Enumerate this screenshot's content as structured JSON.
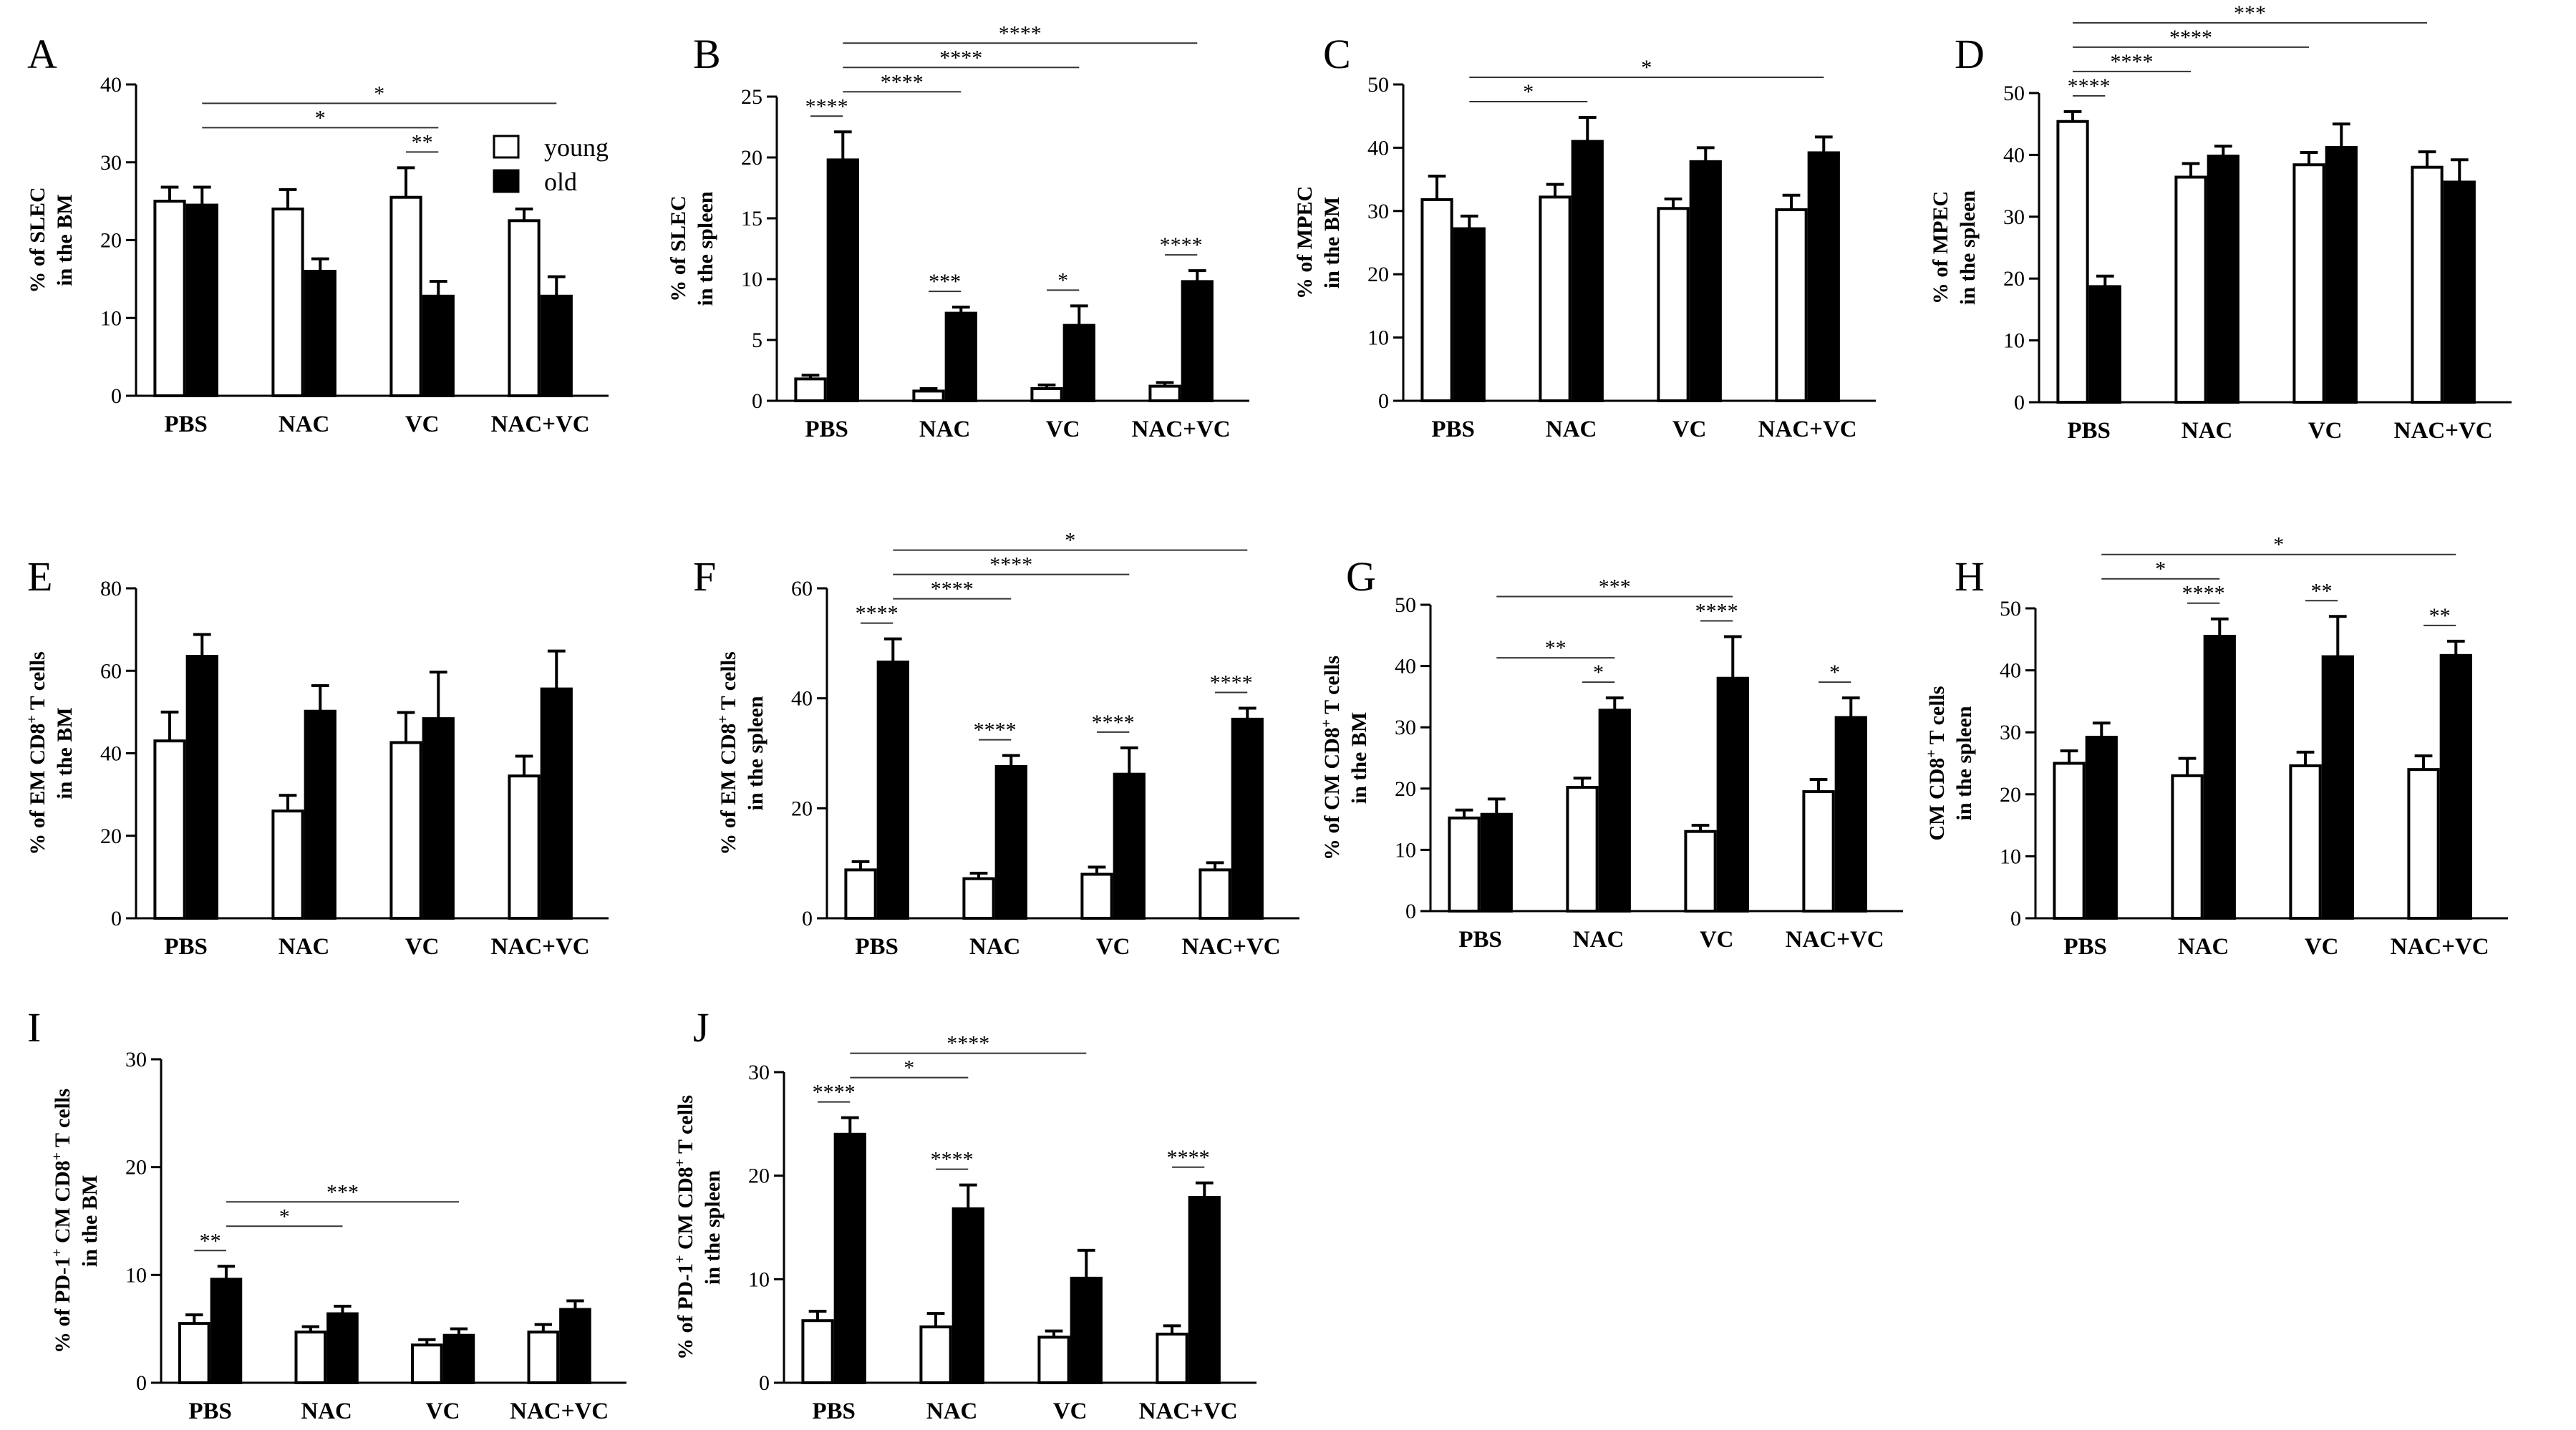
{
  "legend": {
    "young": "young",
    "old": "old"
  },
  "colors": {
    "young_fill": "#ffffff",
    "old_fill": "#000000",
    "sig_line": "#333333"
  },
  "chart_data": [
    {
      "panel": "A",
      "type": "bar",
      "categories": [
        "PBS",
        "NAC",
        "VC",
        "NAC+VC"
      ],
      "ylabel_lines": [
        [
          "% of SLEC"
        ],
        [
          "in the BM"
        ]
      ],
      "ylim": [
        0,
        40
      ],
      "yticks": [
        0,
        10,
        20,
        30,
        40
      ],
      "series": [
        {
          "name": "young",
          "values": [
            25,
            24,
            25.5,
            22.5
          ],
          "errors": [
            1.8,
            2.5,
            3.8,
            1.5
          ]
        },
        {
          "name": "old",
          "values": [
            24.5,
            16,
            12.8,
            12.8
          ],
          "errors": [
            2.3,
            1.6,
            1.9,
            2.5
          ]
        }
      ],
      "significance": [
        {
          "from": [
            2,
            0
          ],
          "to": [
            2,
            1
          ],
          "label": "**"
        },
        {
          "from": [
            0,
            1
          ],
          "to": [
            2,
            1
          ],
          "label": "*"
        },
        {
          "from": [
            0,
            1
          ],
          "to": [
            3,
            1
          ],
          "label": "*"
        }
      ]
    },
    {
      "panel": "B",
      "type": "bar",
      "categories": [
        "PBS",
        "NAC",
        "VC",
        "NAC+VC"
      ],
      "ylabel_lines": [
        [
          "% of SLEC"
        ],
        [
          "in the spleen"
        ]
      ],
      "ylim": [
        0,
        25
      ],
      "yticks": [
        0,
        5,
        10,
        15,
        20,
        25
      ],
      "series": [
        {
          "name": "young",
          "values": [
            1.8,
            0.8,
            1,
            1.2
          ],
          "errors": [
            0.3,
            0.2,
            0.3,
            0.3
          ]
        },
        {
          "name": "old",
          "values": [
            19.8,
            7.2,
            6.2,
            9.8
          ],
          "errors": [
            2.3,
            0.5,
            1.6,
            0.9
          ]
        }
      ],
      "significance": [
        {
          "from": [
            0,
            0
          ],
          "to": [
            0,
            1
          ],
          "label": "****"
        },
        {
          "from": [
            1,
            0
          ],
          "to": [
            1,
            1
          ],
          "label": "***"
        },
        {
          "from": [
            2,
            0
          ],
          "to": [
            2,
            1
          ],
          "label": "*"
        },
        {
          "from": [
            3,
            0
          ],
          "to": [
            3,
            1
          ],
          "label": "****"
        },
        {
          "from": [
            0,
            1
          ],
          "to": [
            1,
            1
          ],
          "label": "****"
        },
        {
          "from": [
            0,
            1
          ],
          "to": [
            2,
            1
          ],
          "label": "****"
        },
        {
          "from": [
            0,
            1
          ],
          "to": [
            3,
            1
          ],
          "label": "****"
        }
      ]
    },
    {
      "panel": "C",
      "type": "bar",
      "categories": [
        "PBS",
        "NAC",
        "VC",
        "NAC+VC"
      ],
      "ylabel_lines": [
        [
          "% of MPEC"
        ],
        [
          "in the BM"
        ]
      ],
      "ylim": [
        0,
        50
      ],
      "yticks": [
        0,
        10,
        20,
        30,
        40,
        50
      ],
      "series": [
        {
          "name": "young",
          "values": [
            31.8,
            32.2,
            30.4,
            30.2
          ],
          "errors": [
            3.7,
            2,
            1.5,
            2.3
          ]
        },
        {
          "name": "old",
          "values": [
            27.2,
            41,
            37.8,
            39.2
          ],
          "errors": [
            2,
            3.8,
            2.2,
            2.5
          ]
        }
      ],
      "significance": [
        {
          "from": [
            0,
            1
          ],
          "to": [
            1,
            1
          ],
          "label": "*"
        },
        {
          "from": [
            0,
            1
          ],
          "to": [
            3,
            1
          ],
          "label": "*"
        }
      ]
    },
    {
      "panel": "D",
      "type": "bar",
      "categories": [
        "PBS",
        "NAC",
        "VC",
        "NAC+VC"
      ],
      "ylabel_lines": [
        [
          "% of MPEC"
        ],
        [
          "in the spleen"
        ]
      ],
      "ylim": [
        0,
        50
      ],
      "yticks": [
        0,
        10,
        20,
        30,
        40,
        50
      ],
      "series": [
        {
          "name": "young",
          "values": [
            45.4,
            36.4,
            38.4,
            38
          ],
          "errors": [
            1.6,
            2.2,
            2,
            2.5
          ]
        },
        {
          "name": "old",
          "values": [
            18.7,
            39.8,
            41.2,
            35.6
          ],
          "errors": [
            1.7,
            1.6,
            3.8,
            3.6
          ]
        }
      ],
      "significance": [
        {
          "from": [
            0,
            0
          ],
          "to": [
            0,
            1
          ],
          "label": "****"
        },
        {
          "from": [
            0,
            0
          ],
          "to": [
            1,
            0
          ],
          "label": "****"
        },
        {
          "from": [
            0,
            0
          ],
          "to": [
            2,
            0
          ],
          "label": "****"
        },
        {
          "from": [
            0,
            0
          ],
          "to": [
            3,
            0
          ],
          "label": "***"
        }
      ]
    },
    {
      "panel": "E",
      "type": "bar",
      "categories": [
        "PBS",
        "NAC",
        "VC",
        "NAC+VC"
      ],
      "ylabel_lines": [
        [
          "% of EM CD8",
          {
            "sup": "+"
          },
          " T cells"
        ],
        [
          "in the BM"
        ]
      ],
      "ylim": [
        0,
        80
      ],
      "yticks": [
        0,
        20,
        40,
        60,
        80
      ],
      "series": [
        {
          "name": "young",
          "values": [
            43,
            26,
            42.6,
            34.5
          ],
          "errors": [
            7,
            3.8,
            7.3,
            4.8
          ]
        },
        {
          "name": "old",
          "values": [
            63.5,
            50.2,
            48.4,
            55.6
          ],
          "errors": [
            5.3,
            6.2,
            11.3,
            9.2
          ]
        }
      ],
      "significance": []
    },
    {
      "panel": "F",
      "type": "bar",
      "categories": [
        "PBS",
        "NAC",
        "VC",
        "NAC+VC"
      ],
      "ylabel_lines": [
        [
          "% of EM CD8",
          {
            "sup": "+"
          },
          " T cells"
        ],
        [
          "in the spleen"
        ]
      ],
      "ylim": [
        0,
        60
      ],
      "yticks": [
        0,
        20,
        40,
        60
      ],
      "series": [
        {
          "name": "young",
          "values": [
            8.8,
            7.2,
            8,
            8.8
          ],
          "errors": [
            1.5,
            1,
            1.3,
            1.3
          ]
        },
        {
          "name": "old",
          "values": [
            46.6,
            27.6,
            26.2,
            36.2
          ],
          "errors": [
            4.2,
            2,
            4.8,
            2
          ]
        }
      ],
      "significance": [
        {
          "from": [
            0,
            0
          ],
          "to": [
            0,
            1
          ],
          "label": "****"
        },
        {
          "from": [
            1,
            0
          ],
          "to": [
            1,
            1
          ],
          "label": "****"
        },
        {
          "from": [
            2,
            0
          ],
          "to": [
            2,
            1
          ],
          "label": "****"
        },
        {
          "from": [
            3,
            0
          ],
          "to": [
            3,
            1
          ],
          "label": "****"
        },
        {
          "from": [
            0,
            1
          ],
          "to": [
            1,
            1
          ],
          "label": "****"
        },
        {
          "from": [
            0,
            1
          ],
          "to": [
            2,
            1
          ],
          "label": "****"
        },
        {
          "from": [
            0,
            1
          ],
          "to": [
            3,
            1
          ],
          "label": "*"
        }
      ]
    },
    {
      "panel": "G",
      "type": "bar",
      "categories": [
        "PBS",
        "NAC",
        "VC",
        "NAC+VC"
      ],
      "ylabel_lines": [
        [
          "% of CM CD8",
          {
            "sup": "+"
          },
          " T cells"
        ],
        [
          "in the BM"
        ]
      ],
      "ylim": [
        0,
        50
      ],
      "yticks": [
        0,
        10,
        20,
        30,
        40,
        50
      ],
      "series": [
        {
          "name": "young",
          "values": [
            15.2,
            20.2,
            13,
            19.5
          ],
          "errors": [
            1.3,
            1.5,
            1,
            2
          ]
        },
        {
          "name": "old",
          "values": [
            15.8,
            32.8,
            38,
            31.6
          ],
          "errors": [
            2.5,
            2,
            6.8,
            3.2
          ]
        }
      ],
      "significance": [
        {
          "from": [
            1,
            0
          ],
          "to": [
            1,
            1
          ],
          "label": "*"
        },
        {
          "from": [
            2,
            0
          ],
          "to": [
            2,
            1
          ],
          "label": "****"
        },
        {
          "from": [
            3,
            0
          ],
          "to": [
            3,
            1
          ],
          "label": "*"
        },
        {
          "from": [
            0,
            1
          ],
          "to": [
            1,
            1
          ],
          "label": "**"
        },
        {
          "from": [
            0,
            1
          ],
          "to": [
            2,
            1
          ],
          "label": "***"
        }
      ]
    },
    {
      "panel": "H",
      "type": "bar",
      "categories": [
        "PBS",
        "NAC",
        "VC",
        "NAC+VC"
      ],
      "ylabel_lines": [
        [
          "CM CD8",
          {
            "sup": "+"
          },
          " T cells"
        ],
        [
          "in the spleen"
        ]
      ],
      "ylim": [
        0,
        50
      ],
      "yticks": [
        0,
        10,
        20,
        30,
        40,
        50
      ],
      "series": [
        {
          "name": "young",
          "values": [
            25,
            23,
            24.6,
            24
          ],
          "errors": [
            2,
            2.8,
            2.2,
            2.2
          ]
        },
        {
          "name": "old",
          "values": [
            29.2,
            45.5,
            42.2,
            42.4
          ],
          "errors": [
            2.3,
            2.8,
            6.5,
            2.3
          ]
        }
      ],
      "significance": [
        {
          "from": [
            1,
            0
          ],
          "to": [
            1,
            1
          ],
          "label": "****"
        },
        {
          "from": [
            2,
            0
          ],
          "to": [
            2,
            1
          ],
          "label": "**"
        },
        {
          "from": [
            3,
            0
          ],
          "to": [
            3,
            1
          ],
          "label": "**"
        },
        {
          "from": [
            0,
            1
          ],
          "to": [
            1,
            1
          ],
          "label": "*"
        },
        {
          "from": [
            0,
            1
          ],
          "to": [
            3,
            1
          ],
          "label": "*"
        }
      ]
    },
    {
      "panel": "I",
      "type": "bar",
      "categories": [
        "PBS",
        "NAC",
        "VC",
        "NAC+VC"
      ],
      "ylabel_lines": [
        [
          "% of PD-1",
          {
            "sup": "+"
          },
          " CM CD8",
          {
            "sup": "+"
          },
          " T cells"
        ],
        [
          "in the BM"
        ]
      ],
      "ylim": [
        0,
        30
      ],
      "yticks": [
        0,
        10,
        20,
        30
      ],
      "series": [
        {
          "name": "young",
          "values": [
            5.5,
            4.7,
            3.5,
            4.7
          ],
          "errors": [
            0.8,
            0.5,
            0.5,
            0.7
          ]
        },
        {
          "name": "old",
          "values": [
            9.6,
            6.4,
            4.4,
            6.8
          ],
          "errors": [
            1.2,
            0.7,
            0.6,
            0.8
          ]
        }
      ],
      "significance": [
        {
          "from": [
            0,
            0
          ],
          "to": [
            0,
            1
          ],
          "label": "**"
        },
        {
          "from": [
            0,
            1
          ],
          "to": [
            1,
            1
          ],
          "label": "*"
        },
        {
          "from": [
            0,
            1
          ],
          "to": [
            2,
            1
          ],
          "label": "***"
        }
      ]
    },
    {
      "panel": "J",
      "type": "bar",
      "categories": [
        "PBS",
        "NAC",
        "VC",
        "NAC+VC"
      ],
      "ylabel_lines": [
        [
          "% of PD-1",
          {
            "sup": "+"
          },
          " CM CD8",
          {
            "sup": "+"
          },
          " T cells"
        ],
        [
          "in the spleen"
        ]
      ],
      "ylim": [
        0,
        30
      ],
      "yticks": [
        0,
        10,
        20,
        30
      ],
      "series": [
        {
          "name": "young",
          "values": [
            6,
            5.4,
            4.4,
            4.7
          ],
          "errors": [
            0.9,
            1.3,
            0.6,
            0.8
          ]
        },
        {
          "name": "old",
          "values": [
            24,
            16.8,
            10.1,
            17.9
          ],
          "errors": [
            1.6,
            2.3,
            2.7,
            1.4
          ]
        }
      ],
      "significance": [
        {
          "from": [
            0,
            0
          ],
          "to": [
            0,
            1
          ],
          "label": "****"
        },
        {
          "from": [
            1,
            0
          ],
          "to": [
            1,
            1
          ],
          "label": "****"
        },
        {
          "from": [
            3,
            0
          ],
          "to": [
            3,
            1
          ],
          "label": "****"
        },
        {
          "from": [
            0,
            1
          ],
          "to": [
            1,
            1
          ],
          "label": "*"
        },
        {
          "from": [
            0,
            1
          ],
          "to": [
            2,
            1
          ],
          "label": "****"
        }
      ]
    }
  ]
}
